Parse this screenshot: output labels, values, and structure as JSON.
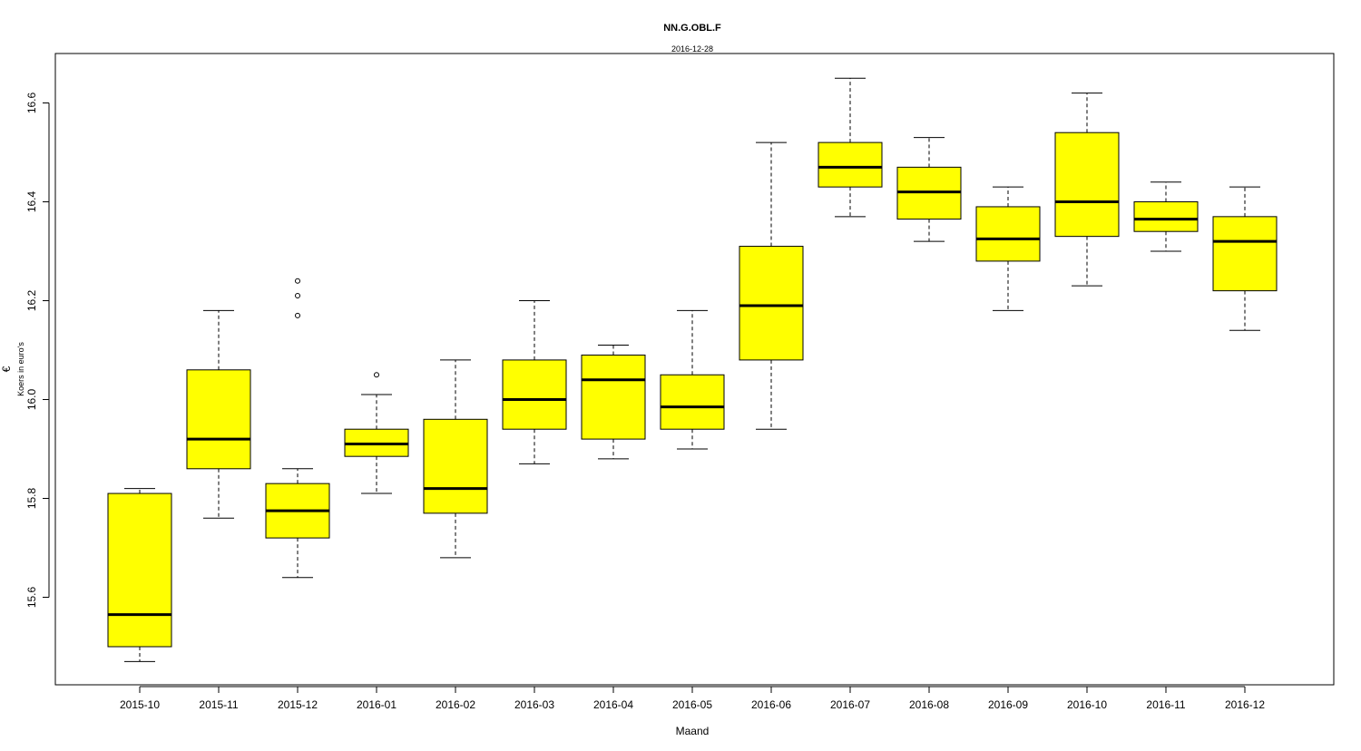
{
  "chart_data": {
    "type": "boxplot",
    "title": "NN.G.OBL.F",
    "subtitle": "2016-12-28",
    "xlabel": "Maand",
    "ylabel_symbol": "€",
    "ylabel": "Koers in euro's",
    "ylim": [
      15.44,
      16.7
    ],
    "yticks": [
      15.6,
      15.8,
      16.0,
      16.2,
      16.4,
      16.6
    ],
    "ytick_labels": [
      "15.6",
      "15.8",
      "16.0",
      "16.2",
      "16.4",
      "16.6"
    ],
    "box_fill": "#ffff00",
    "categories": [
      "2015-10",
      "2015-11",
      "2015-12",
      "2016-01",
      "2016-02",
      "2016-03",
      "2016-04",
      "2016-05",
      "2016-06",
      "2016-07",
      "2016-08",
      "2016-09",
      "2016-10",
      "2016-11",
      "2016-12"
    ],
    "boxes": [
      {
        "min": 15.47,
        "q1": 15.5,
        "median": 15.565,
        "q3": 15.81,
        "max": 15.82,
        "outliers": []
      },
      {
        "min": 15.76,
        "q1": 15.86,
        "median": 15.92,
        "q3": 16.06,
        "max": 16.18,
        "outliers": []
      },
      {
        "min": 15.64,
        "q1": 15.72,
        "median": 15.775,
        "q3": 15.83,
        "max": 15.86,
        "outliers": [
          16.17,
          16.21,
          16.24
        ]
      },
      {
        "min": 15.81,
        "q1": 15.885,
        "median": 15.91,
        "q3": 15.94,
        "max": 16.01,
        "outliers": [
          16.05
        ]
      },
      {
        "min": 15.68,
        "q1": 15.77,
        "median": 15.82,
        "q3": 15.96,
        "max": 16.08,
        "outliers": []
      },
      {
        "min": 15.87,
        "q1": 15.94,
        "median": 16.0,
        "q3": 16.08,
        "max": 16.2,
        "outliers": []
      },
      {
        "min": 15.88,
        "q1": 15.92,
        "median": 16.04,
        "q3": 16.09,
        "max": 16.11,
        "outliers": []
      },
      {
        "min": 15.9,
        "q1": 15.94,
        "median": 15.985,
        "q3": 16.05,
        "max": 16.18,
        "outliers": []
      },
      {
        "min": 15.94,
        "q1": 16.08,
        "median": 16.19,
        "q3": 16.31,
        "max": 16.52,
        "outliers": []
      },
      {
        "min": 16.37,
        "q1": 16.43,
        "median": 16.47,
        "q3": 16.52,
        "max": 16.65,
        "outliers": []
      },
      {
        "min": 16.32,
        "q1": 16.365,
        "median": 16.42,
        "q3": 16.47,
        "max": 16.53,
        "outliers": []
      },
      {
        "min": 16.18,
        "q1": 16.28,
        "median": 16.325,
        "q3": 16.39,
        "max": 16.43,
        "outliers": []
      },
      {
        "min": 16.23,
        "q1": 16.33,
        "median": 16.4,
        "q3": 16.54,
        "max": 16.62,
        "outliers": []
      },
      {
        "min": 16.3,
        "q1": 16.34,
        "median": 16.365,
        "q3": 16.4,
        "max": 16.44,
        "outliers": []
      },
      {
        "min": 16.14,
        "q1": 16.22,
        "median": 16.32,
        "q3": 16.37,
        "max": 16.43,
        "outliers": []
      }
    ]
  }
}
